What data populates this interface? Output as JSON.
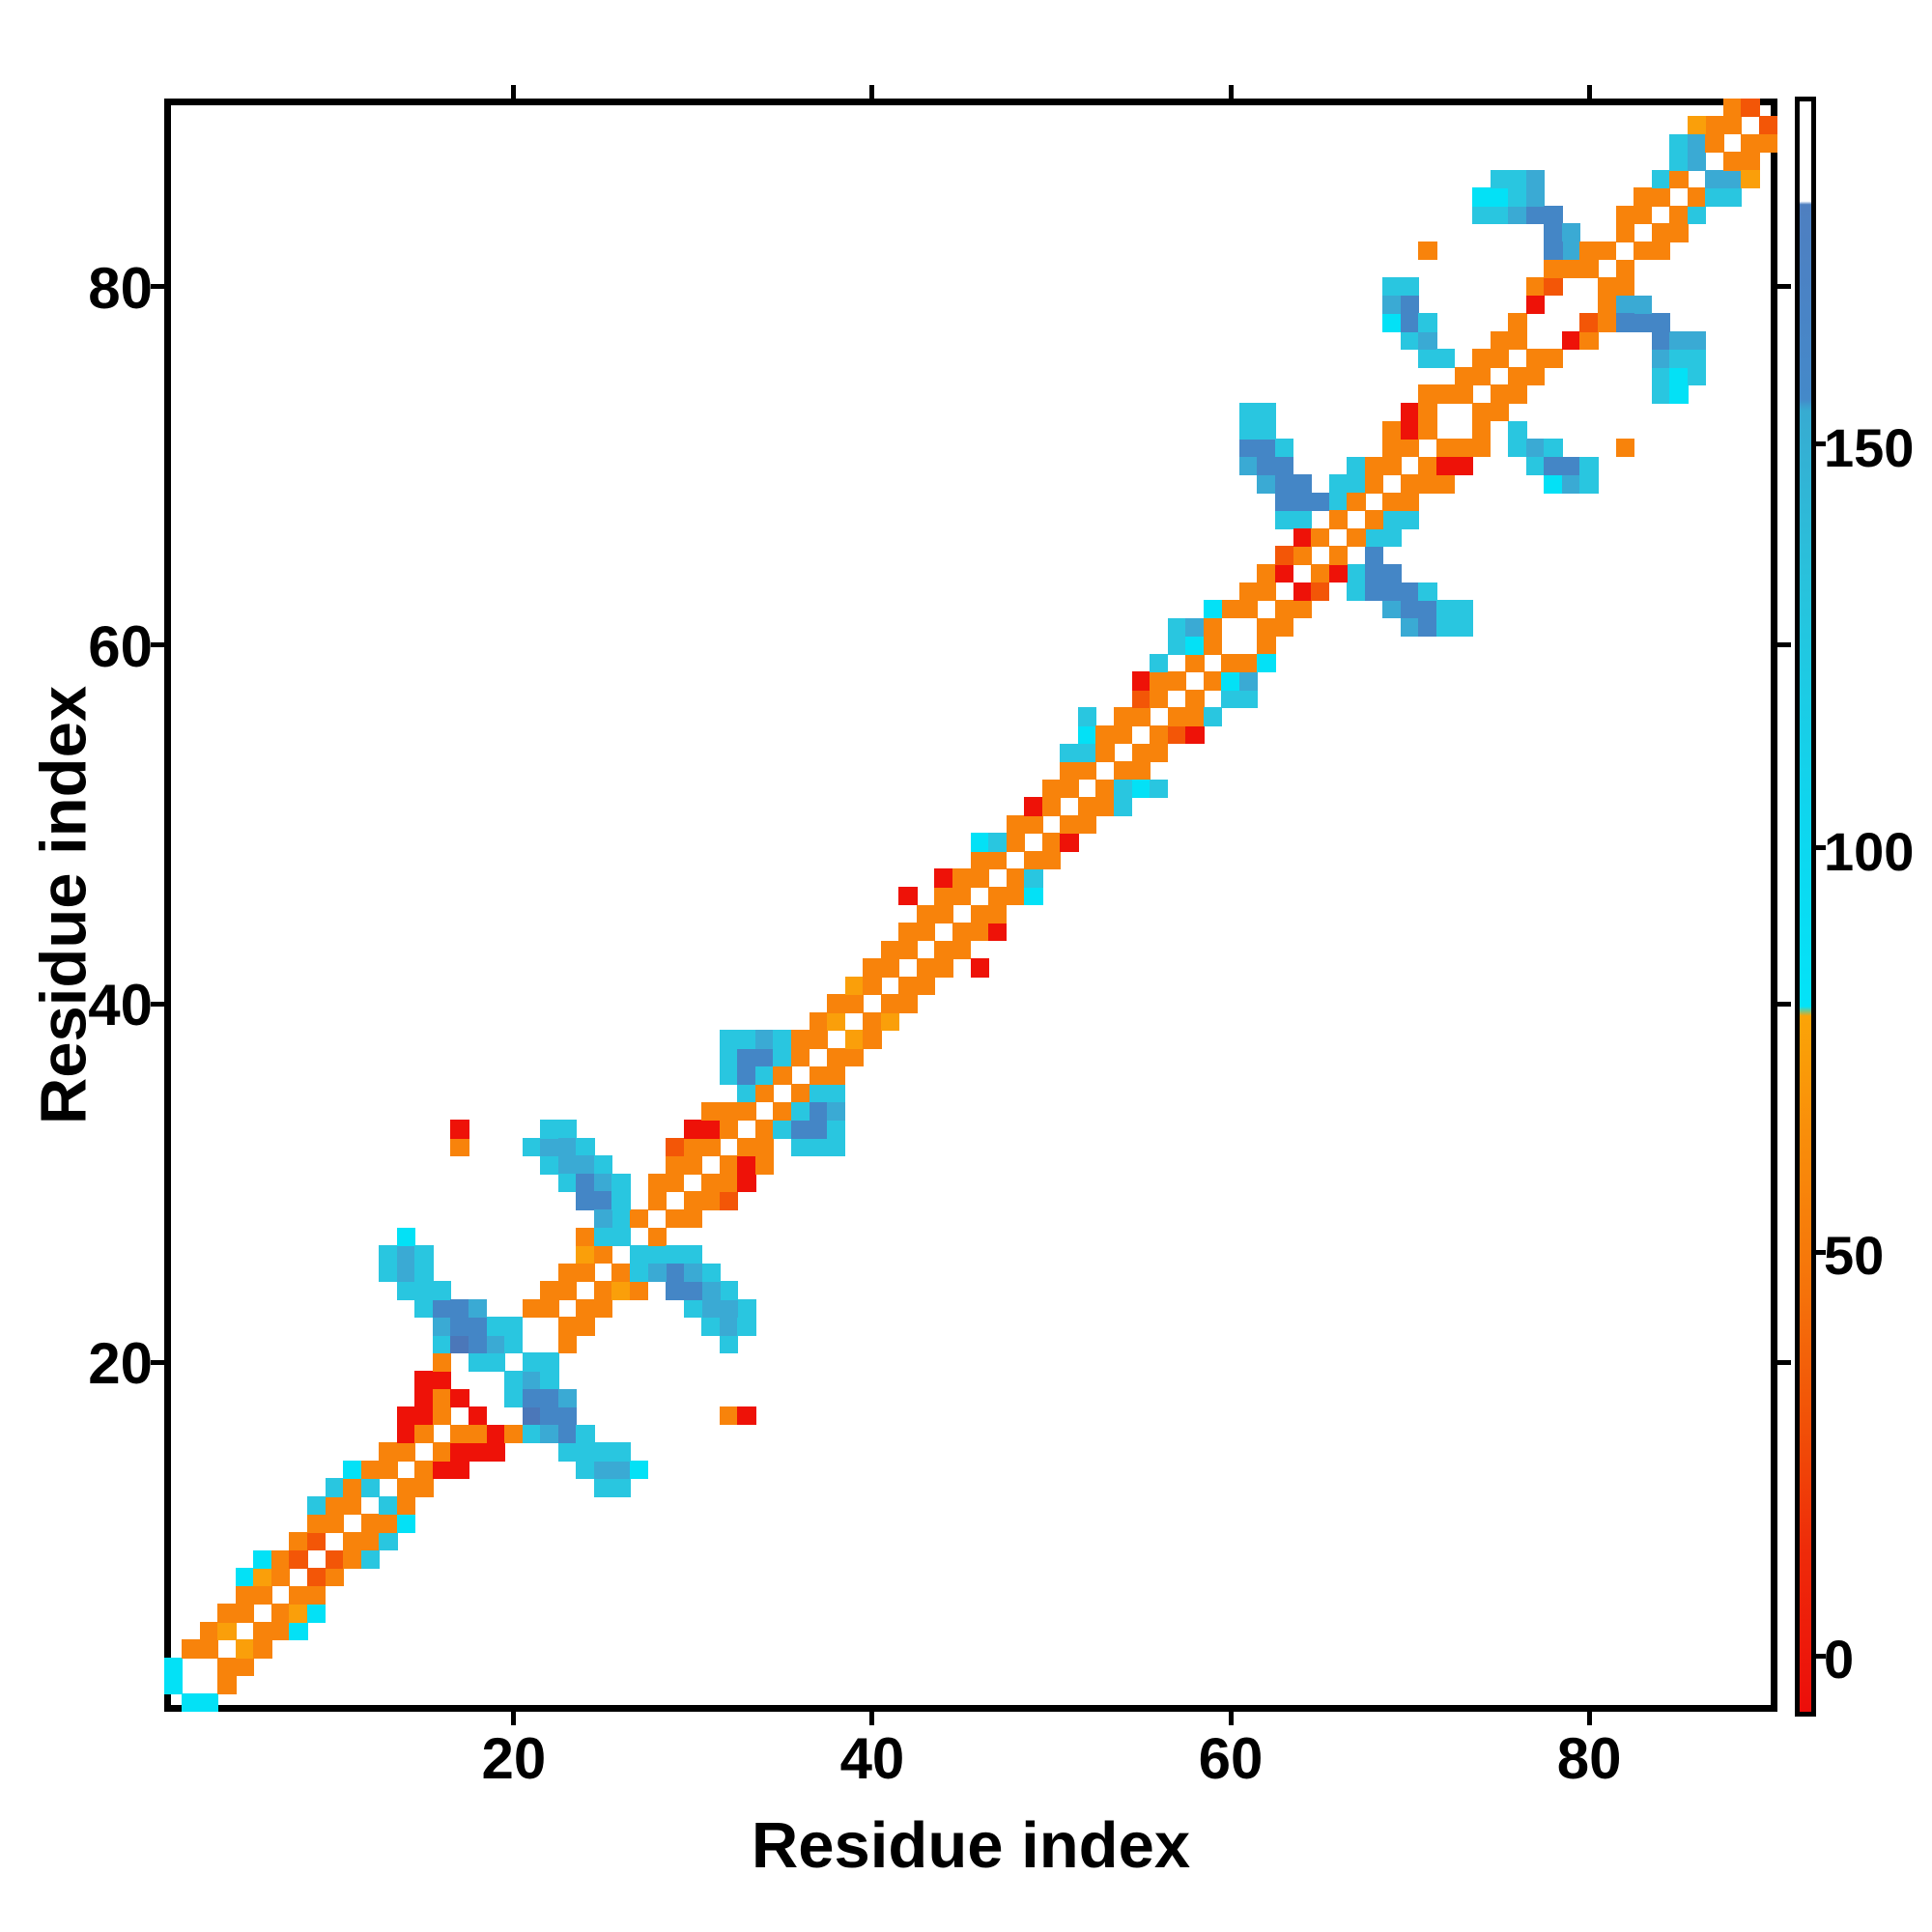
{
  "figure": {
    "x_axis": {
      "label": "Residue index",
      "ticks": [
        20,
        40,
        60,
        80
      ]
    },
    "y_axis": {
      "label": "Residue index",
      "ticks": [
        20,
        40,
        60,
        80
      ]
    },
    "colorbar": {
      "ticks": [
        150,
        100,
        50,
        0
      ],
      "vmin": -7.5,
      "vmax": 193,
      "gradient": [
        [
          0.0,
          "#ffffff"
        ],
        [
          0.062,
          "#ffffff"
        ],
        [
          0.064,
          "#4e7fc0"
        ],
        [
          0.12,
          "#4a83c5"
        ],
        [
          0.185,
          "#4489c9"
        ],
        [
          0.192,
          "#37abd1"
        ],
        [
          0.3,
          "#28c2dc"
        ],
        [
          0.44,
          "#0fd5ee"
        ],
        [
          0.562,
          "#03e3f8"
        ],
        [
          0.568,
          "#fba407"
        ],
        [
          0.64,
          "#f98e0a"
        ],
        [
          0.74,
          "#f5720a"
        ],
        [
          0.82,
          "#f15108"
        ],
        [
          0.9,
          "#ee2b09"
        ],
        [
          1.0,
          "#ec0e0a"
        ]
      ]
    }
  },
  "chart_data": {
    "type": "heatmap",
    "title": "",
    "xlabel": "Residue index",
    "ylabel": "Residue index",
    "n": 90,
    "x_range": [
      0.5,
      90.5
    ],
    "y_range": [
      0.5,
      90.5
    ],
    "grid": false,
    "symmetric": true,
    "diagonal_color": "#ffffff",
    "palette": {
      "O": "#f8830b",
      "L": "#fa9f0a",
      "D": "#f35607",
      "R": "#ee1208",
      "C": "#03e1f6",
      "c": "#29c6e0",
      "b": "#3aaad4",
      "B": "#4486c6",
      "d": "#4b77b9"
    },
    "cells_upper_triangle": [
      [
        1,
        2,
        "C"
      ],
      [
        1,
        3,
        "C"
      ],
      [
        2,
        4,
        "O"
      ],
      [
        3,
        4,
        "O"
      ],
      [
        3,
        5,
        "O"
      ],
      [
        4,
        5,
        "L"
      ],
      [
        4,
        6,
        "O"
      ],
      [
        5,
        6,
        "O"
      ],
      [
        5,
        7,
        "O"
      ],
      [
        5,
        8,
        "C"
      ],
      [
        6,
        7,
        "O"
      ],
      [
        6,
        8,
        "L"
      ],
      [
        6,
        9,
        "C"
      ],
      [
        7,
        8,
        "O"
      ],
      [
        7,
        9,
        "O"
      ],
      [
        8,
        9,
        "D"
      ],
      [
        8,
        10,
        "O"
      ],
      [
        9,
        10,
        "D"
      ],
      [
        9,
        11,
        "O"
      ],
      [
        9,
        12,
        "c"
      ],
      [
        10,
        11,
        "O"
      ],
      [
        10,
        12,
        "O"
      ],
      [
        10,
        13,
        "c"
      ],
      [
        11,
        12,
        "O"
      ],
      [
        11,
        13,
        "O"
      ],
      [
        11,
        14,
        "C"
      ],
      [
        12,
        13,
        "c"
      ],
      [
        12,
        14,
        "O"
      ],
      [
        13,
        14,
        "O"
      ],
      [
        13,
        15,
        "O"
      ],
      [
        14,
        15,
        "O"
      ],
      [
        14,
        16,
        "R"
      ],
      [
        14,
        17,
        "R"
      ],
      [
        15,
        16,
        "O"
      ],
      [
        15,
        17,
        "R"
      ],
      [
        15,
        18,
        "R"
      ],
      [
        15,
        19,
        "R"
      ],
      [
        16,
        17,
        "O"
      ],
      [
        16,
        18,
        "O"
      ],
      [
        16,
        19,
        "R"
      ],
      [
        17,
        18,
        "R"
      ],
      [
        16,
        20,
        "O"
      ],
      [
        16,
        21,
        "c"
      ],
      [
        13,
        25,
        "c"
      ],
      [
        13,
        26,
        "c"
      ],
      [
        14,
        24,
        "c"
      ],
      [
        14,
        25,
        "b"
      ],
      [
        14,
        26,
        "b"
      ],
      [
        14,
        27,
        "C"
      ],
      [
        15,
        23,
        "c"
      ],
      [
        15,
        24,
        "c"
      ],
      [
        15,
        25,
        "c"
      ],
      [
        15,
        26,
        "c"
      ],
      [
        16,
        22,
        "b"
      ],
      [
        16,
        23,
        "B"
      ],
      [
        16,
        24,
        "c"
      ],
      [
        17,
        21,
        "d"
      ],
      [
        17,
        22,
        "B"
      ],
      [
        17,
        23,
        "B"
      ],
      [
        18,
        20,
        "c"
      ],
      [
        18,
        21,
        "B"
      ],
      [
        18,
        22,
        "B"
      ],
      [
        18,
        23,
        "b"
      ],
      [
        19,
        20,
        "c"
      ],
      [
        19,
        21,
        "b"
      ],
      [
        19,
        22,
        "c"
      ],
      [
        20,
        21,
        "c"
      ],
      [
        20,
        22,
        "c"
      ],
      [
        17,
        32,
        "O"
      ],
      [
        17,
        33,
        "R"
      ],
      [
        21,
        23,
        "O"
      ],
      [
        22,
        23,
        "O"
      ],
      [
        22,
        24,
        "O"
      ],
      [
        23,
        24,
        "O"
      ],
      [
        23,
        25,
        "O"
      ],
      [
        24,
        25,
        "O"
      ],
      [
        24,
        26,
        "L"
      ],
      [
        25,
        26,
        "O"
      ],
      [
        24,
        27,
        "O"
      ],
      [
        25,
        27,
        "c"
      ],
      [
        26,
        27,
        "c"
      ],
      [
        26,
        28,
        "c"
      ],
      [
        27,
        28,
        "O"
      ],
      [
        21,
        32,
        "c"
      ],
      [
        22,
        31,
        "c"
      ],
      [
        22,
        32,
        "b"
      ],
      [
        22,
        33,
        "c"
      ],
      [
        23,
        33,
        "c"
      ],
      [
        23,
        32,
        "b"
      ],
      [
        23,
        31,
        "b"
      ],
      [
        23,
        30,
        "c"
      ],
      [
        24,
        32,
        "c"
      ],
      [
        24,
        31,
        "b"
      ],
      [
        24,
        30,
        "B"
      ],
      [
        24,
        29,
        "B"
      ],
      [
        25,
        31,
        "c"
      ],
      [
        25,
        30,
        "b"
      ],
      [
        25,
        29,
        "B"
      ],
      [
        25,
        28,
        "b"
      ],
      [
        26,
        29,
        "c"
      ],
      [
        26,
        30,
        "c"
      ],
      [
        28,
        29,
        "O"
      ],
      [
        28,
        30,
        "O"
      ],
      [
        29,
        30,
        "O"
      ],
      [
        29,
        31,
        "O"
      ],
      [
        30,
        31,
        "O"
      ],
      [
        29,
        32,
        "D"
      ],
      [
        30,
        32,
        "O"
      ],
      [
        31,
        32,
        "O"
      ],
      [
        30,
        33,
        "R"
      ],
      [
        31,
        33,
        "R"
      ],
      [
        32,
        33,
        "O"
      ],
      [
        31,
        34,
        "O"
      ],
      [
        32,
        34,
        "O"
      ],
      [
        33,
        34,
        "O"
      ],
      [
        33,
        35,
        "c"
      ],
      [
        34,
        35,
        "O"
      ],
      [
        32,
        36,
        "c"
      ],
      [
        32,
        37,
        "c"
      ],
      [
        32,
        38,
        "c"
      ],
      [
        33,
        36,
        "B"
      ],
      [
        33,
        37,
        "B"
      ],
      [
        33,
        38,
        "c"
      ],
      [
        34,
        36,
        "c"
      ],
      [
        34,
        37,
        "B"
      ],
      [
        34,
        38,
        "b"
      ],
      [
        35,
        36,
        "O"
      ],
      [
        35,
        37,
        "c"
      ],
      [
        35,
        38,
        "c"
      ],
      [
        36,
        37,
        "O"
      ],
      [
        36,
        38,
        "O"
      ],
      [
        37,
        38,
        "O"
      ],
      [
        37,
        39,
        "O"
      ],
      [
        38,
        39,
        "L"
      ],
      [
        38,
        40,
        "O"
      ],
      [
        39,
        40,
        "O"
      ],
      [
        39,
        41,
        "L"
      ],
      [
        40,
        41,
        "O"
      ],
      [
        40,
        42,
        "O"
      ],
      [
        41,
        42,
        "O"
      ],
      [
        41,
        43,
        "O"
      ],
      [
        42,
        43,
        "O"
      ],
      [
        42,
        44,
        "O"
      ],
      [
        43,
        44,
        "O"
      ],
      [
        42,
        46,
        "R"
      ],
      [
        43,
        45,
        "O"
      ],
      [
        44,
        45,
        "O"
      ],
      [
        44,
        46,
        "O"
      ],
      [
        44,
        47,
        "R"
      ],
      [
        45,
        46,
        "O"
      ],
      [
        45,
        47,
        "O"
      ],
      [
        46,
        47,
        "O"
      ],
      [
        46,
        48,
        "O"
      ],
      [
        47,
        48,
        "O"
      ],
      [
        46,
        49,
        "C"
      ],
      [
        47,
        49,
        "c"
      ],
      [
        48,
        49,
        "O"
      ],
      [
        48,
        50,
        "O"
      ],
      [
        49,
        50,
        "O"
      ],
      [
        49,
        51,
        "R"
      ],
      [
        50,
        51,
        "O"
      ],
      [
        50,
        52,
        "O"
      ],
      [
        51,
        52,
        "O"
      ],
      [
        51,
        53,
        "O"
      ],
      [
        52,
        53,
        "O"
      ],
      [
        51,
        54,
        "c"
      ],
      [
        52,
        54,
        "c"
      ],
      [
        52,
        55,
        "C"
      ],
      [
        52,
        56,
        "c"
      ],
      [
        53,
        54,
        "O"
      ],
      [
        53,
        55,
        "O"
      ],
      [
        54,
        55,
        "O"
      ],
      [
        54,
        56,
        "O"
      ],
      [
        55,
        56,
        "O"
      ],
      [
        55,
        57,
        "D"
      ],
      [
        55,
        58,
        "R"
      ],
      [
        56,
        57,
        "O"
      ],
      [
        56,
        58,
        "O"
      ],
      [
        57,
        58,
        "O"
      ],
      [
        56,
        59,
        "c"
      ],
      [
        58,
        59,
        "O"
      ],
      [
        57,
        60,
        "c"
      ],
      [
        58,
        60,
        "C"
      ],
      [
        57,
        61,
        "c"
      ],
      [
        58,
        61,
        "b"
      ],
      [
        59,
        60,
        "O"
      ],
      [
        59,
        61,
        "O"
      ],
      [
        60,
        62,
        "O"
      ],
      [
        61,
        62,
        "O"
      ],
      [
        59,
        62,
        "C"
      ],
      [
        62,
        63,
        "O"
      ],
      [
        61,
        63,
        "O"
      ],
      [
        61,
        70,
        "b"
      ],
      [
        61,
        71,
        "B"
      ],
      [
        61,
        72,
        "c"
      ],
      [
        61,
        73,
        "c"
      ],
      [
        62,
        69,
        "b"
      ],
      [
        62,
        70,
        "B"
      ],
      [
        62,
        71,
        "B"
      ],
      [
        62,
        72,
        "c"
      ],
      [
        62,
        73,
        "c"
      ],
      [
        63,
        67,
        "c"
      ],
      [
        63,
        68,
        "B"
      ],
      [
        63,
        69,
        "B"
      ],
      [
        63,
        70,
        "B"
      ],
      [
        63,
        71,
        "c"
      ],
      [
        64,
        67,
        "c"
      ],
      [
        64,
        68,
        "B"
      ],
      [
        64,
        69,
        "B"
      ],
      [
        65,
        68,
        "B"
      ],
      [
        66,
        68,
        "c"
      ],
      [
        66,
        69,
        "c"
      ],
      [
        67,
        69,
        "c"
      ],
      [
        67,
        70,
        "c"
      ],
      [
        62,
        64,
        "O"
      ],
      [
        63,
        64,
        "R"
      ],
      [
        63,
        65,
        "D"
      ],
      [
        64,
        65,
        "O"
      ],
      [
        64,
        66,
        "R"
      ],
      [
        65,
        66,
        "O"
      ],
      [
        66,
        67,
        "O"
      ],
      [
        67,
        68,
        "O"
      ],
      [
        68,
        69,
        "O"
      ],
      [
        68,
        70,
        "O"
      ],
      [
        69,
        70,
        "O"
      ],
      [
        69,
        71,
        "O"
      ],
      [
        69,
        72,
        "O"
      ],
      [
        70,
        71,
        "O"
      ],
      [
        70,
        72,
        "R"
      ],
      [
        70,
        73,
        "R"
      ],
      [
        71,
        72,
        "O"
      ],
      [
        71,
        73,
        "O"
      ],
      [
        71,
        74,
        "O"
      ],
      [
        72,
        74,
        "O"
      ],
      [
        73,
        74,
        "O"
      ],
      [
        73,
        75,
        "O"
      ],
      [
        74,
        75,
        "O"
      ],
      [
        74,
        76,
        "O"
      ],
      [
        75,
        76,
        "O"
      ],
      [
        75,
        77,
        "O"
      ],
      [
        76,
        77,
        "O"
      ],
      [
        69,
        78,
        "C"
      ],
      [
        69,
        79,
        "b"
      ],
      [
        69,
        80,
        "c"
      ],
      [
        70,
        77,
        "c"
      ],
      [
        70,
        78,
        "B"
      ],
      [
        70,
        79,
        "B"
      ],
      [
        70,
        80,
        "c"
      ],
      [
        71,
        76,
        "c"
      ],
      [
        71,
        77,
        "b"
      ],
      [
        71,
        78,
        "c"
      ],
      [
        72,
        76,
        "c"
      ],
      [
        71,
        82,
        "O"
      ],
      [
        74,
        84,
        "c"
      ],
      [
        74,
        85,
        "C"
      ],
      [
        75,
        84,
        "c"
      ],
      [
        75,
        85,
        "C"
      ],
      [
        75,
        86,
        "c"
      ],
      [
        76,
        84,
        "b"
      ],
      [
        76,
        85,
        "c"
      ],
      [
        76,
        86,
        "c"
      ],
      [
        77,
        84,
        "B"
      ],
      [
        77,
        85,
        "b"
      ],
      [
        77,
        86,
        "b"
      ],
      [
        78,
        83,
        "B"
      ],
      [
        78,
        84,
        "B"
      ],
      [
        79,
        82,
        "b"
      ],
      [
        79,
        83,
        "b"
      ],
      [
        78,
        82,
        "B"
      ],
      [
        76,
        78,
        "O"
      ],
      [
        77,
        79,
        "R"
      ],
      [
        77,
        80,
        "O"
      ],
      [
        78,
        80,
        "D"
      ],
      [
        78,
        81,
        "O"
      ],
      [
        79,
        81,
        "O"
      ],
      [
        80,
        81,
        "O"
      ],
      [
        80,
        82,
        "O"
      ],
      [
        81,
        82,
        "O"
      ],
      [
        82,
        83,
        "O"
      ],
      [
        82,
        84,
        "O"
      ],
      [
        83,
        84,
        "O"
      ],
      [
        83,
        85,
        "O"
      ],
      [
        84,
        85,
        "O"
      ],
      [
        84,
        86,
        "c"
      ],
      [
        85,
        86,
        "O"
      ],
      [
        85,
        87,
        "c"
      ],
      [
        86,
        87,
        "b"
      ],
      [
        85,
        88,
        "c"
      ],
      [
        86,
        88,
        "b"
      ],
      [
        87,
        88,
        "O"
      ],
      [
        87,
        89,
        "O"
      ],
      [
        88,
        89,
        "O"
      ],
      [
        88,
        90,
        "O"
      ],
      [
        89,
        90,
        "D"
      ],
      [
        86,
        89,
        "L"
      ]
    ]
  }
}
